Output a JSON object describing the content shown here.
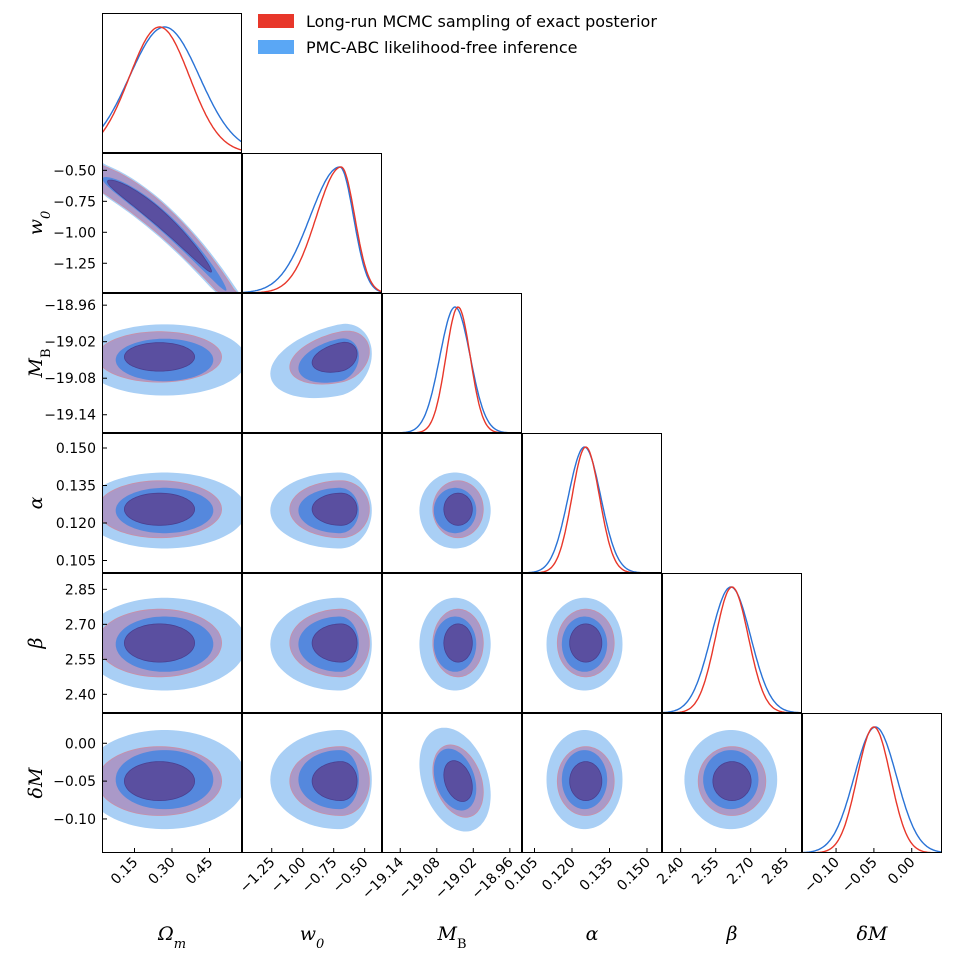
{
  "chart_data": {
    "type": "corner",
    "legend": {
      "placement": "top-right",
      "entries": [
        {
          "label": "Long-run MCMC sampling of exact posterior",
          "color": "#e8372a"
        },
        {
          "label": "PMC-ABC likelihood-free inference",
          "color": "#5aa7f5"
        }
      ]
    },
    "colors": {
      "mcmc_line": "#e8372a",
      "abc_line": "#2a73d6",
      "abc_outer": "#a9cff5",
      "abc_inner": "#5588dd",
      "mcmc_outer": "#aa8fc0",
      "mcmc_inner": "#5a4fa0",
      "mcmc_outer_edge": "#c98fa6",
      "mcmc_inner_edge": "#4a4090"
    },
    "parameters": [
      {
        "name": "omega_m",
        "label": "Ωm",
        "label_base": "Ω",
        "label_sub": "m",
        "range": [
          0.02,
          0.58
        ],
        "ticks": [
          "0.15",
          "0.30",
          "0.45"
        ],
        "tick_values": [
          0.15,
          0.3,
          0.45
        ],
        "mcmc": {
          "mean": 0.25,
          "sd": 0.12,
          "lo": 0.0,
          "hi": 0.55
        },
        "abc": {
          "mean": 0.27,
          "sd": 0.14,
          "lo": 0.0,
          "hi": 0.57
        }
      },
      {
        "name": "w0",
        "label": "w0",
        "label_base": "w",
        "label_sub": "0",
        "range": [
          -1.49,
          -0.36
        ],
        "ticks": [
          "-1.25",
          "-1.00",
          "-0.75",
          "-0.50"
        ],
        "tick_values": [
          -1.25,
          -1.0,
          -0.75,
          -0.5
        ],
        "mcmc": {
          "mean": -0.69,
          "sd": 0.2,
          "skew_sd": 0.11
        },
        "abc": {
          "mean": -0.7,
          "sd": 0.24,
          "skew_sd": 0.11
        }
      },
      {
        "name": "M_B",
        "label": "MB",
        "label_base": "M",
        "label_sub": "B",
        "range": [
          -19.17,
          -18.94
        ],
        "ticks": [
          "-19.14",
          "-19.08",
          "-19.02",
          "-18.96"
        ],
        "tick_values": [
          -19.14,
          -19.08,
          -19.02,
          -18.96
        ],
        "mcmc": {
          "mean": -19.045,
          "sd": 0.02
        },
        "abc": {
          "mean": -19.05,
          "sd": 0.025
        }
      },
      {
        "name": "alpha",
        "label": "α",
        "label_base": "α",
        "label_sub": "",
        "range": [
          0.1,
          0.156
        ],
        "ticks": [
          "0.105",
          "0.120",
          "0.135",
          "0.150"
        ],
        "tick_values": [
          0.105,
          0.12,
          0.135,
          0.15
        ],
        "mcmc": {
          "mean": 0.1255,
          "sd": 0.0055
        },
        "abc": {
          "mean": 0.125,
          "sd": 0.0065
        }
      },
      {
        "name": "beta",
        "label": "β",
        "label_base": "β",
        "label_sub": "",
        "range": [
          2.32,
          2.92
        ],
        "ticks": [
          "2.40",
          "2.55",
          "2.70",
          "2.85"
        ],
        "tick_values": [
          2.4,
          2.55,
          2.7,
          2.85
        ],
        "mcmc": {
          "mean": 2.62,
          "sd": 0.07
        },
        "abc": {
          "mean": 2.615,
          "sd": 0.085
        }
      },
      {
        "name": "delta_M",
        "label": "δM",
        "label_base": "δM",
        "label_sub": "",
        "range": [
          -0.145,
          0.04
        ],
        "ticks": [
          "-0.10",
          "-0.05",
          "0.00"
        ],
        "tick_values": [
          -0.1,
          -0.05,
          0.0
        ],
        "mcmc": {
          "mean": -0.05,
          "sd": 0.022
        },
        "abc": {
          "mean": -0.048,
          "sd": 0.028
        }
      }
    ]
  }
}
